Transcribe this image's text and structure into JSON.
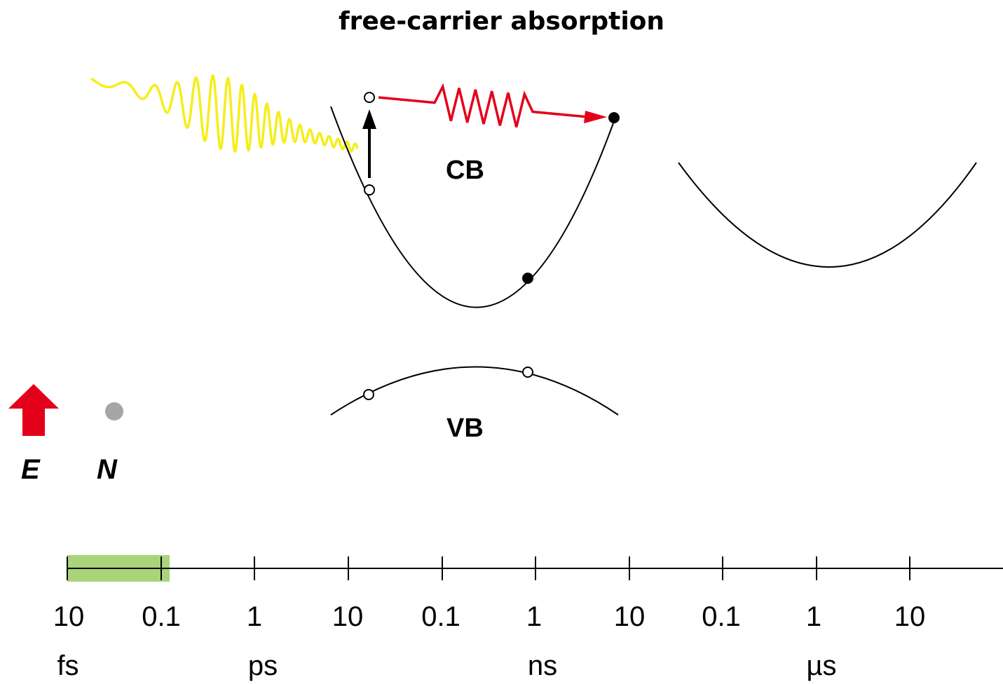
{
  "title": "free-carrier absorption",
  "bands": {
    "conduction": "CB",
    "valence": "VB"
  },
  "legend": {
    "energy_label": "E",
    "carrier_label": "N",
    "energy_icon": "red-up-arrow-icon",
    "carrier_icon": "gray-dot-icon"
  },
  "timeline": {
    "tick_labels": [
      "10",
      "0.1",
      "1",
      "10",
      "0.1",
      "1",
      "10",
      "0.1",
      "1",
      "10"
    ],
    "unit_labels": [
      "fs",
      "ps",
      "ns",
      "µs"
    ],
    "highlight_range": [
      "10 fs",
      "0.1 ps"
    ]
  },
  "colors": {
    "laser": "#f5ee1a",
    "phonon": "#e3001b",
    "energy_arrow": "#e3001b",
    "carrier_dot": "#a6a6a6",
    "highlight": "#a9d47a"
  }
}
